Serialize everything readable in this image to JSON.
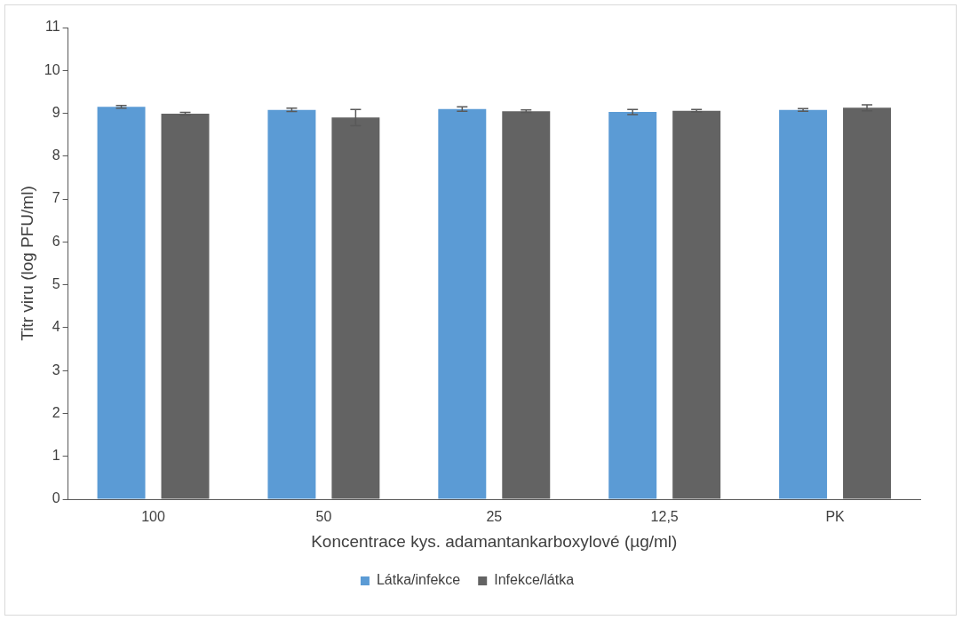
{
  "chart_data": {
    "type": "bar",
    "xlabel": "Koncentrace kys. adamantankarboxylové (µg/ml)",
    "ylabel": "Titr viru (log PFU/ml)",
    "categories": [
      "100",
      "50",
      "25",
      "12,5",
      "PK"
    ],
    "series": [
      {
        "name": "Látka/infekce",
        "color": "#5b9bd5",
        "values": [
          9.15,
          9.08,
          9.1,
          9.03,
          9.08
        ],
        "errors": [
          0.03,
          0.04,
          0.05,
          0.06,
          0.03
        ]
      },
      {
        "name": "Infekce/látka",
        "color": "#636363",
        "values": [
          8.99,
          8.9,
          9.05,
          9.06,
          9.13
        ],
        "errors": [
          0.03,
          0.19,
          0.03,
          0.03,
          0.07
        ]
      }
    ],
    "ylim": [
      0,
      11
    ],
    "yticks": [
      0,
      1,
      2,
      3,
      4,
      5,
      6,
      7,
      8,
      9,
      10,
      11
    ],
    "grid": false,
    "legend": "bottom"
  }
}
